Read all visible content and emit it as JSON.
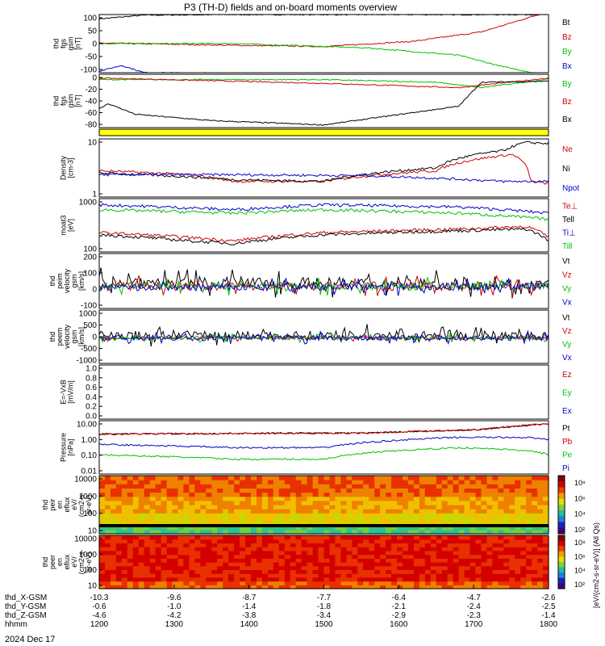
{
  "chart_data": {
    "type": "line",
    "title": "P3 (TH-D) fields and on-board moments overview",
    "x": {
      "hhmm": [
        "1200",
        "1300",
        "1400",
        "1500",
        "1600",
        "1700",
        "1800"
      ],
      "date": "2024 Dec 17",
      "ephemeris_rows": [
        {
          "label": "thd_X-GSM",
          "values": [
            "-10.3",
            "-9.6",
            "-8.7",
            "-7.7",
            "-6.4",
            "-4.7",
            "-2.6"
          ]
        },
        {
          "label": "thd_Y-GSM",
          "values": [
            "-0.6",
            "-1.0",
            "-1.4",
            "-1.8",
            "-2.1",
            "-2.4",
            "-2.5"
          ]
        },
        {
          "label": "thd_Z-GSM",
          "values": [
            "-4.6",
            "-4.2",
            "-3.8",
            "-3.4",
            "-2.9",
            "-2.3",
            "-1.4"
          ]
        },
        {
          "label": "hhmm",
          "values": [
            "1200",
            "1300",
            "1400",
            "1500",
            "1600",
            "1700",
            "1800"
          ]
        }
      ]
    },
    "panels": [
      {
        "id": "fgs",
        "ylabel": [
          "thd",
          "fgs",
          "gsm",
          "[nT]"
        ],
        "yticks": [
          "100",
          "50",
          "0",
          "-50",
          "-100"
        ],
        "ylim": [
          -100,
          100
        ],
        "series": [
          {
            "name": "Bt",
            "color": "#000000",
            "shape": [
              [
                0,
                85
              ],
              [
                0.1,
                98
              ],
              [
                0.3,
                100
              ],
              [
                0.6,
                100
              ],
              [
                1,
                100
              ]
            ]
          },
          {
            "name": "Bz",
            "color": "#d00000",
            "shape": [
              [
                0,
                2
              ],
              [
                0.3,
                -6
              ],
              [
                0.5,
                -10
              ],
              [
                0.7,
                8
              ],
              [
                0.85,
                40
              ],
              [
                1,
                110
              ]
            ]
          },
          {
            "name": "By",
            "color": "#00c000",
            "shape": [
              [
                0,
                0
              ],
              [
                0.3,
                0
              ],
              [
                0.6,
                -15
              ],
              [
                0.8,
                -40
              ],
              [
                0.9,
                -80
              ],
              [
                1,
                -110
              ]
            ]
          },
          {
            "name": "Bx",
            "color": "#0000d0",
            "shape": [
              [
                0,
                -95
              ],
              [
                0.05,
                -75
              ],
              [
                0.1,
                -100
              ],
              [
                1,
                -110
              ]
            ]
          }
        ]
      },
      {
        "id": "fgs_zoom",
        "ylabel": [
          "thd",
          "fgs",
          "gsm",
          "[nT]"
        ],
        "yticks": [
          "0",
          "-20",
          "-40",
          "-60",
          "-80"
        ],
        "ylim": [
          -95,
          5
        ],
        "series": [
          {
            "name": "By",
            "color": "#00c000",
            "shape": [
              [
                0,
                -5
              ],
              [
                0.5,
                -5
              ],
              [
                0.75,
                -10
              ],
              [
                0.85,
                -20
              ],
              [
                1,
                -4
              ]
            ]
          },
          {
            "name": "Bz",
            "color": "#d00000",
            "shape": [
              [
                0,
                -2
              ],
              [
                0.5,
                -12
              ],
              [
                0.8,
                -20
              ],
              [
                1,
                -2
              ]
            ]
          },
          {
            "name": "Bx",
            "color": "#000000",
            "shape": [
              [
                0,
                -60
              ],
              [
                0.02,
                -50
              ],
              [
                0.08,
                -70
              ],
              [
                0.25,
                -82
              ],
              [
                0.5,
                -90
              ],
              [
                0.8,
                -55
              ],
              [
                0.85,
                -10
              ],
              [
                1,
                -8
              ]
            ]
          }
        ]
      },
      {
        "id": "mode",
        "ylabel": [],
        "yticks": [],
        "fill": "#ffff00"
      },
      {
        "id": "density",
        "ylabel": [
          "Density",
          "[cm-3]"
        ],
        "yticks": [
          "10",
          "1"
        ],
        "log": true,
        "ylim": [
          0.1,
          40
        ],
        "series": [
          {
            "name": "Ne",
            "color": "#d00000",
            "shape": [
              [
                0,
                1.5
              ],
              [
                0.2,
                1
              ],
              [
                0.3,
                0.5
              ],
              [
                0.5,
                0.5
              ],
              [
                0.75,
                1.5
              ],
              [
                0.92,
                8
              ],
              [
                0.96,
                0.5
              ],
              [
                1,
                0.4
              ]
            ]
          },
          {
            "name": "Ni",
            "color": "#000000",
            "shape": [
              [
                0,
                1.2
              ],
              [
                0.3,
                0.6
              ],
              [
                0.5,
                0.5
              ],
              [
                0.75,
                2
              ],
              [
                0.9,
                12
              ],
              [
                0.95,
                28
              ],
              [
                1,
                25
              ]
            ]
          },
          {
            "name": "Npot",
            "color": "#0000d0",
            "shape": [
              [
                0,
                1
              ],
              [
                0.3,
                1
              ],
              [
                0.6,
                0.9
              ],
              [
                0.9,
                0.5
              ],
              [
                1,
                0.5
              ]
            ]
          }
        ]
      },
      {
        "id": "temps",
        "ylabel": [
          "moat3",
          "[eV]"
        ],
        "yticks": [
          "1000",
          "100"
        ],
        "log": true,
        "ylim": [
          60,
          5000
        ],
        "series": [
          {
            "name": "Te⊥",
            "color": "#d00000",
            "shape": [
              [
                0,
                300
              ],
              [
                0.2,
                200
              ],
              [
                0.3,
                150
              ],
              [
                0.5,
                300
              ],
              [
                0.8,
                400
              ],
              [
                0.95,
                500
              ],
              [
                1,
                200
              ]
            ]
          },
          {
            "name": "Tell",
            "color": "#000000",
            "shape": [
              [
                0,
                250
              ],
              [
                0.2,
                150
              ],
              [
                0.3,
                120
              ],
              [
                0.5,
                250
              ],
              [
                0.8,
                350
              ],
              [
                0.95,
                400
              ],
              [
                1,
                150
              ]
            ]
          },
          {
            "name": "Ti⊥",
            "color": "#0000d0",
            "shape": [
              [
                0,
                3000
              ],
              [
                0.3,
                2000
              ],
              [
                0.5,
                3000
              ],
              [
                0.8,
                2500
              ],
              [
                1,
                1500
              ]
            ]
          },
          {
            "name": "Till",
            "color": "#00c000",
            "shape": [
              [
                0,
                2000
              ],
              [
                0.3,
                1500
              ],
              [
                0.5,
                2000
              ],
              [
                0.8,
                1500
              ],
              [
                1,
                900
              ]
            ]
          }
        ]
      },
      {
        "id": "peim",
        "ylabel": [
          "thd",
          "peim",
          "velocity",
          "gsm",
          "[km/s]"
        ],
        "yticks": [
          "200",
          "100",
          "0",
          "-100"
        ],
        "ylim": [
          -150,
          220
        ],
        "series": [
          {
            "name": "Vt",
            "color": "#000000",
            "shape": [
              [
                0,
                30
              ],
              [
                1,
                10
              ]
            ],
            "noise": 40
          },
          {
            "name": "Vz",
            "color": "#d00000",
            "shape": [
              [
                0,
                0
              ],
              [
                1,
                0
              ]
            ],
            "noise": 30
          },
          {
            "name": "Vy",
            "color": "#00c000",
            "shape": [
              [
                0,
                0
              ],
              [
                1,
                0
              ]
            ],
            "noise": 25
          },
          {
            "name": "Vx",
            "color": "#0000d0",
            "shape": [
              [
                0,
                -10
              ],
              [
                1,
                0
              ]
            ],
            "noise": 25
          }
        ]
      },
      {
        "id": "peem",
        "ylabel": [
          "thd",
          "peem",
          "velocity",
          "gsm",
          "[km/s]"
        ],
        "yticks": [
          "1000",
          "500",
          "0",
          "-500",
          "-1000"
        ],
        "ylim": [
          -1100,
          1200
        ],
        "series": [
          {
            "name": "Vt",
            "color": "#000000",
            "shape": [
              [
                0,
                100
              ],
              [
                1,
                100
              ]
            ],
            "noise": 200
          },
          {
            "name": "Vz",
            "color": "#d00000",
            "shape": [
              [
                0,
                0
              ],
              [
                1,
                0
              ]
            ],
            "noise": 60
          },
          {
            "name": "Vy",
            "color": "#00c000",
            "shape": [
              [
                0,
                0
              ],
              [
                1,
                0
              ]
            ],
            "noise": 80
          },
          {
            "name": "Vx",
            "color": "#0000d0",
            "shape": [
              [
                0,
                0
              ],
              [
                1,
                0
              ]
            ],
            "noise": 120
          }
        ]
      },
      {
        "id": "evxb",
        "ylabel": [
          "E=-VxB",
          "[mV/m]"
        ],
        "yticks": [
          "1.0",
          "0.8",
          "0.6",
          "0.4",
          "0.2",
          "0.0"
        ],
        "ylim": [
          0,
          1
        ],
        "series": [
          {
            "name": "Ez",
            "color": "#d00000",
            "shape": []
          },
          {
            "name": "Ey",
            "color": "#00c000",
            "shape": []
          },
          {
            "name": "Ex",
            "color": "#0000d0",
            "shape": []
          }
        ]
      },
      {
        "id": "pressure",
        "ylabel": [
          "Pressure",
          "[nPa]"
        ],
        "yticks": [
          "10.00",
          "1.00",
          "0.10",
          "0.01"
        ],
        "log": true,
        "ylim": [
          0.005,
          20
        ],
        "series": [
          {
            "name": "Pt",
            "color": "#000000",
            "shape": [
              [
                0,
                2.5
              ],
              [
                0.6,
                3
              ],
              [
                0.85,
                5
              ],
              [
                1,
                12
              ]
            ]
          },
          {
            "name": "Pb",
            "color": "#d00000",
            "shape": [
              [
                0,
                2.5
              ],
              [
                0.6,
                3
              ],
              [
                0.85,
                5
              ],
              [
                1,
                12
              ]
            ]
          },
          {
            "name": "Pe",
            "color": "#00c000",
            "shape": [
              [
                0,
                0.1
              ],
              [
                0.3,
                0.05
              ],
              [
                0.5,
                0.05
              ],
              [
                0.8,
                0.3
              ],
              [
                0.95,
                0.2
              ],
              [
                1,
                0.1
              ]
            ]
          },
          {
            "name": "Pi",
            "color": "#0000d0",
            "shape": [
              [
                0,
                0.5
              ],
              [
                0.3,
                0.3
              ],
              [
                0.5,
                0.3
              ],
              [
                0.8,
                1.5
              ],
              [
                0.95,
                1.5
              ],
              [
                1,
                1
              ]
            ]
          }
        ]
      },
      {
        "id": "peir",
        "ylabel": [
          "thd",
          "peir",
          "en",
          "eflux",
          "eV/",
          "(cm2-s-",
          "sr-eV)"
        ],
        "yticks": [
          "10000",
          "1000",
          "100",
          "10"
        ],
        "spectrogram": true
      },
      {
        "id": "peer",
        "ylabel": [
          "thd",
          "peer",
          "en",
          "eflux",
          "eV/",
          "(cm2-s-",
          "sr-eV)"
        ],
        "yticks": [
          "10000",
          "1000",
          "100",
          "10"
        ],
        "spectrogram": true
      }
    ],
    "colorbar": {
      "ticks": [
        "10⁸",
        "10⁶",
        "10⁴",
        "10²"
      ],
      "label": "[eV/(cm2-s-sr-eV)] (All Qs)"
    }
  }
}
